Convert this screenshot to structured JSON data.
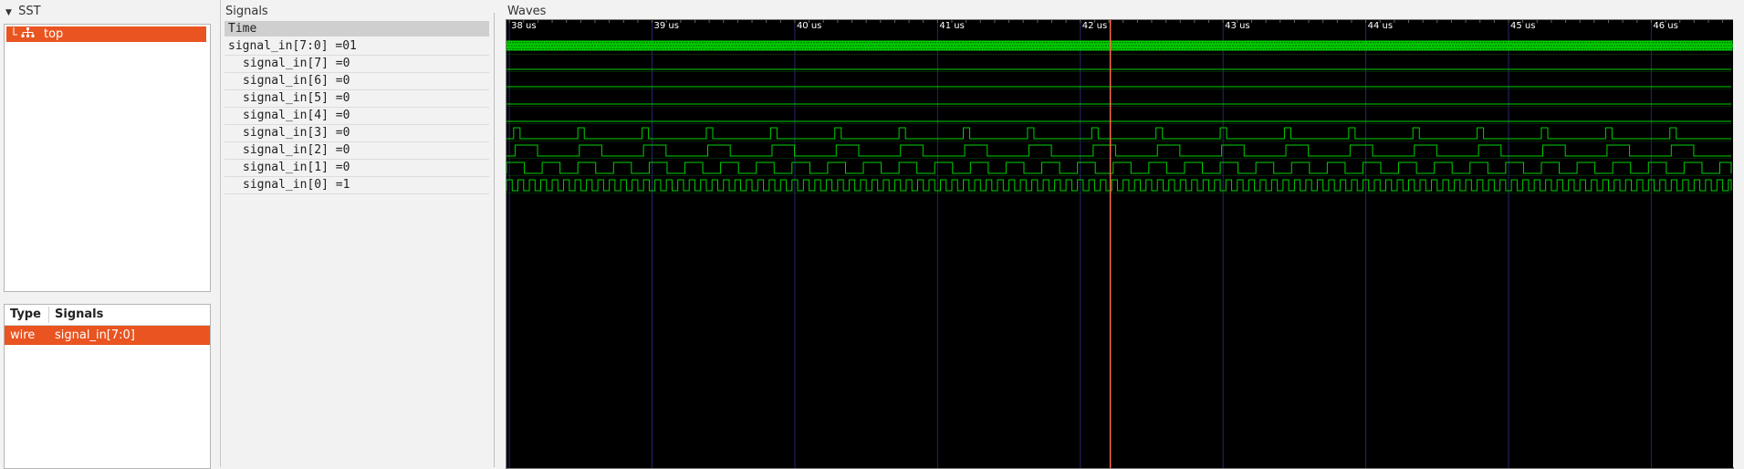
{
  "sst": {
    "title": "SST",
    "tree": [
      {
        "label": "top",
        "selected": true
      }
    ]
  },
  "signal_table": {
    "headers": [
      "Type",
      "Signals"
    ],
    "rows": [
      {
        "type": "wire",
        "signal": "signal_in[7:0]",
        "selected": true
      }
    ]
  },
  "signals_panel": {
    "title": "Signals",
    "time_label": "Time",
    "rows": [
      {
        "name": "signal_in[7:0]",
        "value": "=01"
      },
      {
        "name": "signal_in[7]",
        "value": "=0"
      },
      {
        "name": "signal_in[6]",
        "value": "=0"
      },
      {
        "name": "signal_in[5]",
        "value": "=0"
      },
      {
        "name": "signal_in[4]",
        "value": "=0"
      },
      {
        "name": "signal_in[3]",
        "value": "=0"
      },
      {
        "name": "signal_in[2]",
        "value": "=0"
      },
      {
        "name": "signal_in[1]",
        "value": "=0"
      },
      {
        "name": "signal_in[0]",
        "value": "=1"
      }
    ]
  },
  "waves_panel": {
    "title": "Waves",
    "time_ticks": [
      "38 us",
      "39 us",
      "40 us",
      "41 us",
      "42 us",
      "43 us",
      "44 us",
      "45 us",
      "46 us"
    ],
    "cursor_time_us": 42.21,
    "visible_range_us": [
      37.98,
      46.56
    ],
    "colors": {
      "background": "#000000",
      "wave": "#00d100",
      "grid": "#26266e",
      "cursor": "#ff6a4d",
      "text": "#ffffff"
    }
  },
  "colors": {
    "accent": "#e95420"
  }
}
